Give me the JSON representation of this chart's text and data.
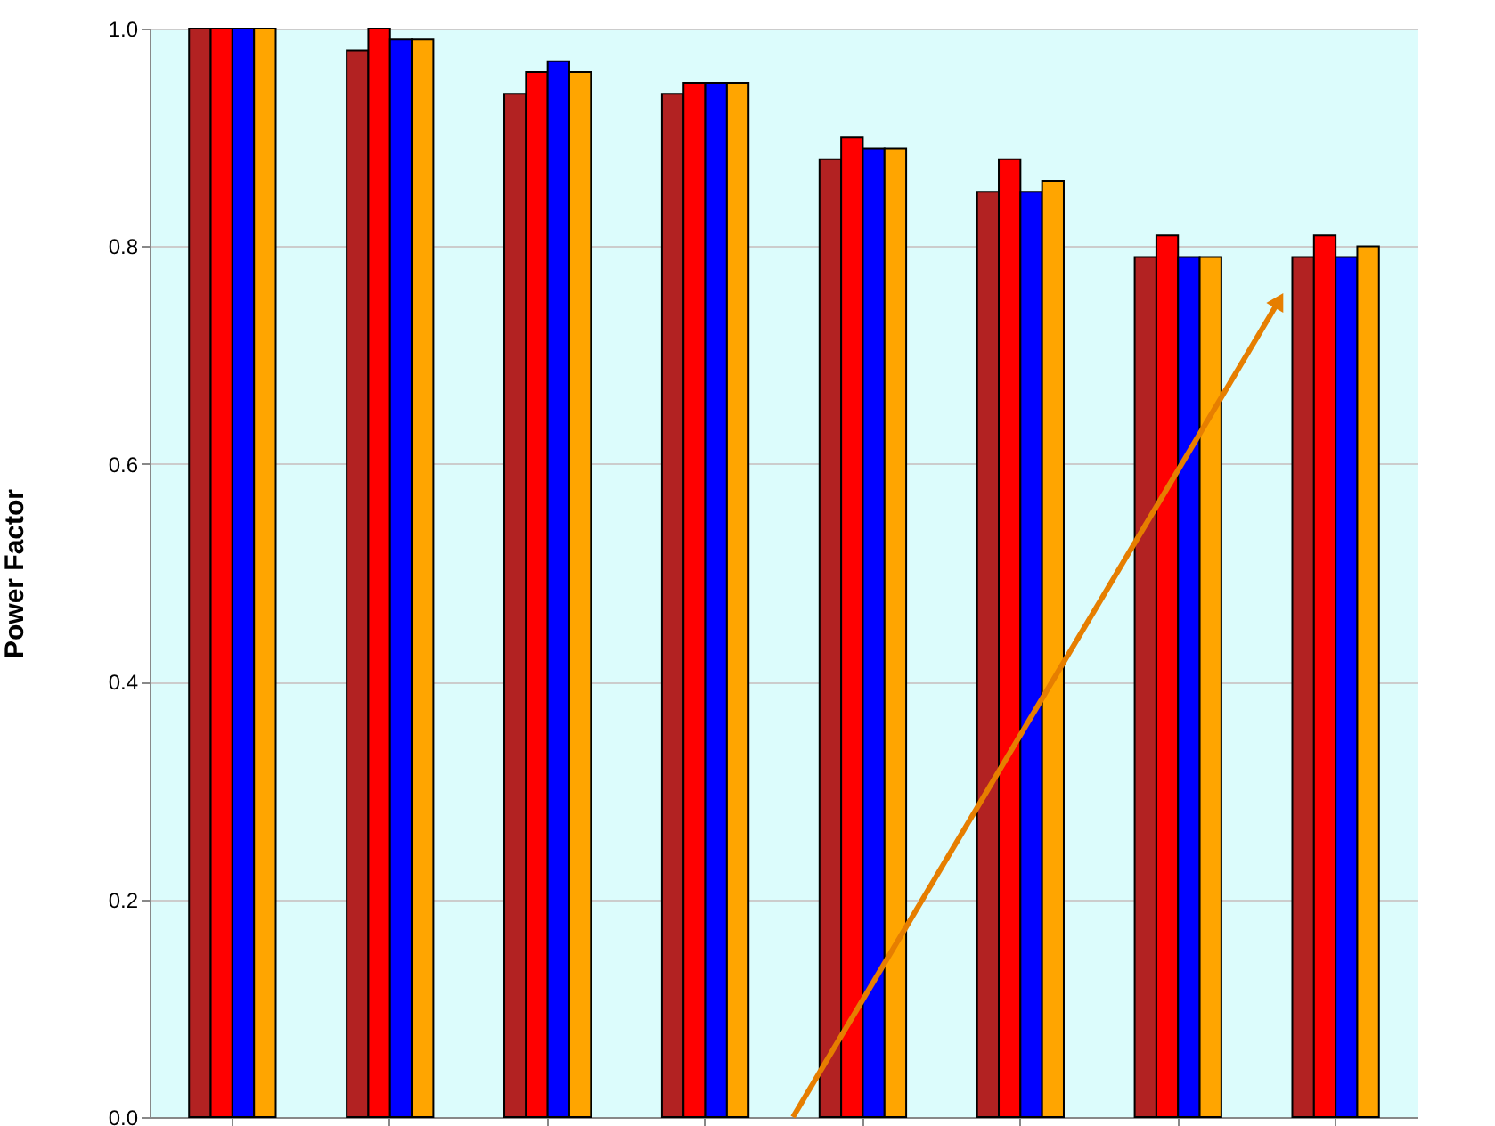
{
  "chart_data": {
    "type": "bar",
    "ylabel": "Power Factor",
    "categories": [
      null,
      null,
      null,
      null,
      null,
      null,
      null,
      null
    ],
    "series": [
      {
        "color": "#b22222",
        "values": [
          1.0,
          0.98,
          0.94,
          0.94,
          0.88,
          0.85,
          0.79,
          0.79
        ]
      },
      {
        "color": "#ff0000",
        "values": [
          1.0,
          1.0,
          0.96,
          0.95,
          0.9,
          0.88,
          0.81,
          0.81
        ]
      },
      {
        "color": "#0000ff",
        "values": [
          1.0,
          0.99,
          0.97,
          0.95,
          0.89,
          0.85,
          0.79,
          0.79
        ]
      },
      {
        "color": "#ffa500",
        "values": [
          1.0,
          0.99,
          0.96,
          0.95,
          0.89,
          0.86,
          0.79,
          0.8
        ]
      }
    ],
    "ylim": [
      0,
      1.0
    ],
    "yticks": [
      {
        "value": 0,
        "label": "0.0"
      },
      0.2,
      0.4,
      0.6,
      0.8,
      {
        "value": 1.0,
        "label": "1.0"
      }
    ],
    "grid": "y",
    "tick_labels": "y"
  }
}
